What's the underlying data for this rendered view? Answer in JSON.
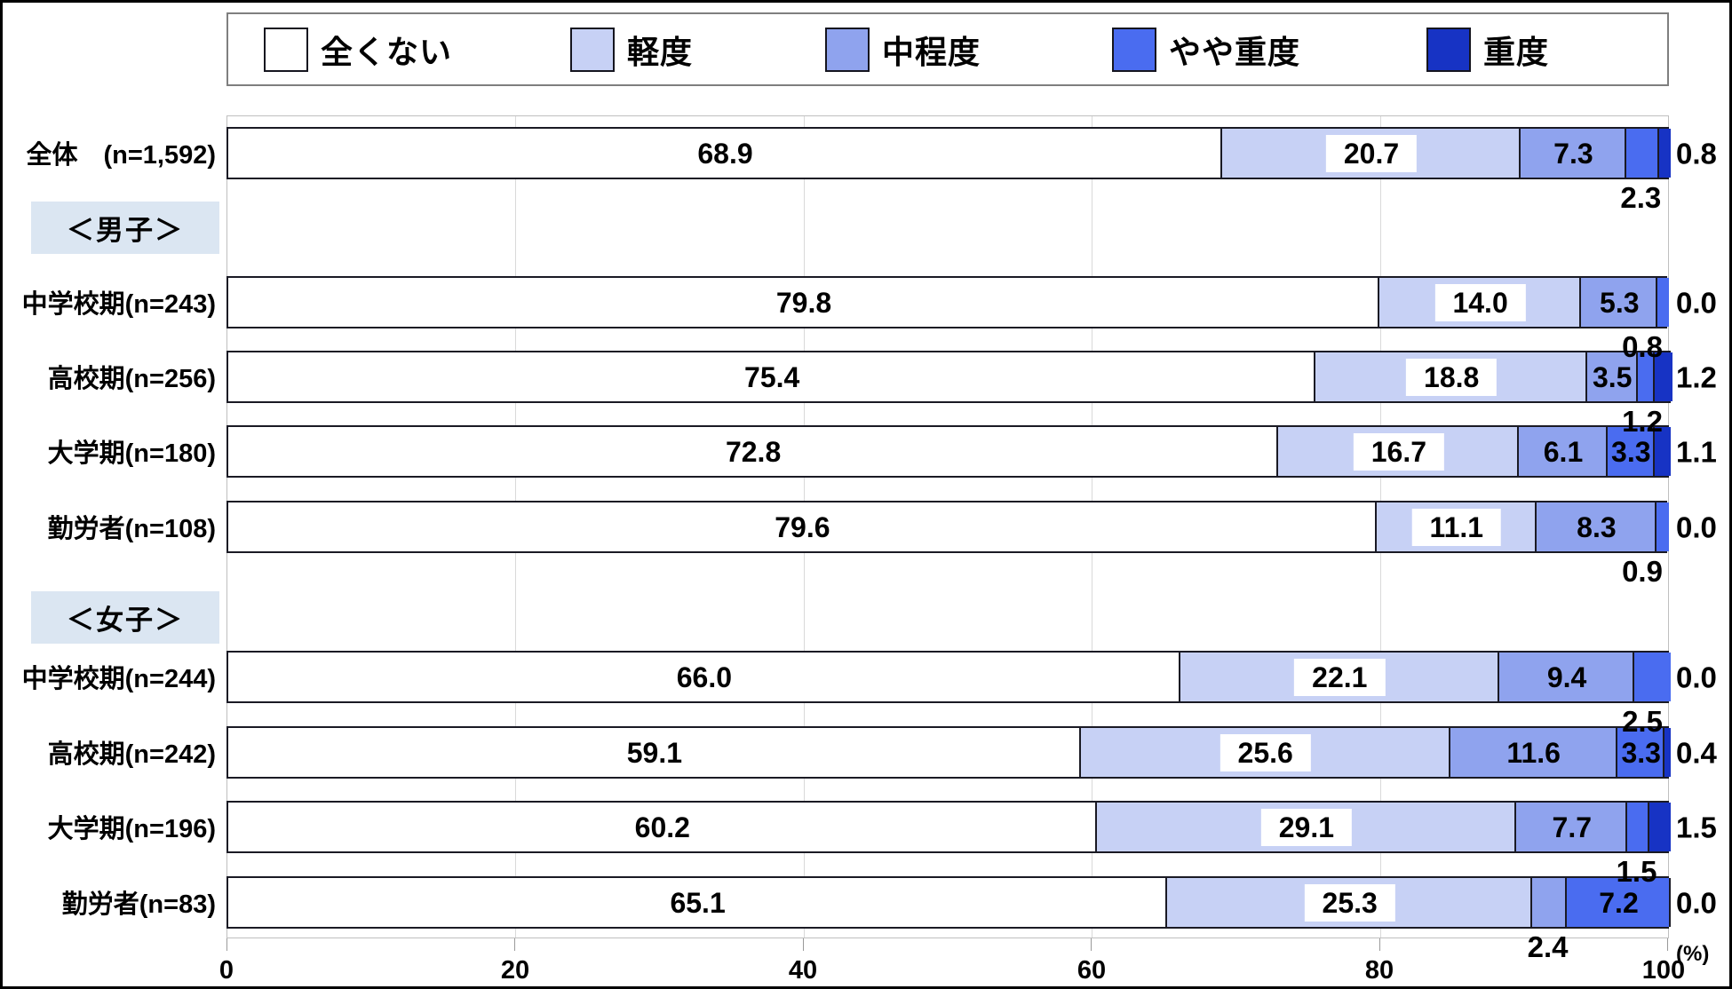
{
  "legend": {
    "items": [
      {
        "name": "none",
        "label": "全くない",
        "color": "#ffffff"
      },
      {
        "name": "mild",
        "label": "軽度",
        "color": "#c7d1f5"
      },
      {
        "name": "moderate",
        "label": "中程度",
        "color": "#8fa3ee"
      },
      {
        "name": "severe",
        "label": "やや重度",
        "color": "#4a6cf0"
      },
      {
        "name": "extreme",
        "label": "重度",
        "color": "#1733c4"
      }
    ]
  },
  "section_headers": [
    {
      "label": "＜男子＞"
    },
    {
      "label": "＜女子＞"
    }
  ],
  "rows": [
    {
      "label": "全体　(n=1,592)",
      "values": [
        68.9,
        20.7,
        7.3,
        2.3,
        0.8
      ],
      "label_pos": [
        "in",
        "box",
        "in",
        "below",
        "right"
      ]
    },
    {
      "label": "中学校期(n=243)",
      "values": [
        79.8,
        14.0,
        5.3,
        0.8,
        0.0
      ],
      "label_pos": [
        "in",
        "box",
        "in",
        "below",
        "right"
      ]
    },
    {
      "label": "高校期(n=256)",
      "values": [
        75.4,
        18.8,
        3.5,
        1.2,
        1.2
      ],
      "label_pos": [
        "in",
        "box",
        "in",
        "below",
        "right"
      ]
    },
    {
      "label": "大学期(n=180)",
      "values": [
        72.8,
        16.7,
        6.1,
        3.3,
        1.1
      ],
      "label_pos": [
        "in",
        "box",
        "in",
        "in",
        "right"
      ]
    },
    {
      "label": "勤労者(n=108)",
      "values": [
        79.6,
        11.1,
        8.3,
        0.9,
        0.0
      ],
      "label_pos": [
        "in",
        "box",
        "in",
        "below",
        "right"
      ]
    },
    {
      "label": "中学校期(n=244)",
      "values": [
        66.0,
        22.1,
        9.4,
        2.5,
        0.0
      ],
      "label_pos": [
        "in",
        "box",
        "in",
        "below",
        "right"
      ]
    },
    {
      "label": "高校期(n=242)",
      "values": [
        59.1,
        25.6,
        11.6,
        3.3,
        0.4
      ],
      "label_pos": [
        "in",
        "box",
        "in",
        "in",
        "right"
      ]
    },
    {
      "label": "大学期(n=196)",
      "values": [
        60.2,
        29.1,
        7.7,
        1.5,
        1.5
      ],
      "label_pos": [
        "in",
        "box",
        "in",
        "below",
        "right"
      ]
    },
    {
      "label": "勤労者(n=83)",
      "values": [
        65.1,
        25.3,
        2.4,
        7.2,
        0.0
      ],
      "label_pos": [
        "in",
        "box",
        "below",
        "in",
        "right"
      ]
    }
  ],
  "axis": {
    "ticks": [
      "0",
      "20",
      "40",
      "60",
      "80",
      "100"
    ],
    "unit": "(%)"
  },
  "chart_data": {
    "type": "bar",
    "stacked": true,
    "orientation": "horizontal",
    "xlim": [
      0,
      100
    ],
    "xlabel": "(%)",
    "grid": true,
    "legend_position": "top",
    "categories": [
      "全体 (n=1,592)",
      "男子 中学校期(n=243)",
      "男子 高校期(n=256)",
      "男子 大学期(n=180)",
      "男子 勤労者(n=108)",
      "女子 中学校期(n=244)",
      "女子 高校期(n=242)",
      "女子 大学期(n=196)",
      "女子 勤労者(n=83)"
    ],
    "series": [
      {
        "name": "全くない",
        "values": [
          68.9,
          79.8,
          75.4,
          72.8,
          79.6,
          66.0,
          59.1,
          60.2,
          65.1
        ]
      },
      {
        "name": "軽度",
        "values": [
          20.7,
          14.0,
          18.8,
          16.7,
          11.1,
          22.1,
          25.6,
          29.1,
          25.3
        ]
      },
      {
        "name": "中程度",
        "values": [
          7.3,
          5.3,
          3.5,
          6.1,
          8.3,
          9.4,
          11.6,
          7.7,
          2.4
        ]
      },
      {
        "name": "やや重度",
        "values": [
          2.3,
          0.8,
          1.2,
          3.3,
          0.9,
          2.5,
          3.3,
          1.5,
          7.2
        ]
      },
      {
        "name": "重度",
        "values": [
          0.8,
          0.0,
          1.2,
          1.1,
          0.0,
          0.0,
          0.4,
          1.5,
          0.0
        ]
      }
    ]
  }
}
